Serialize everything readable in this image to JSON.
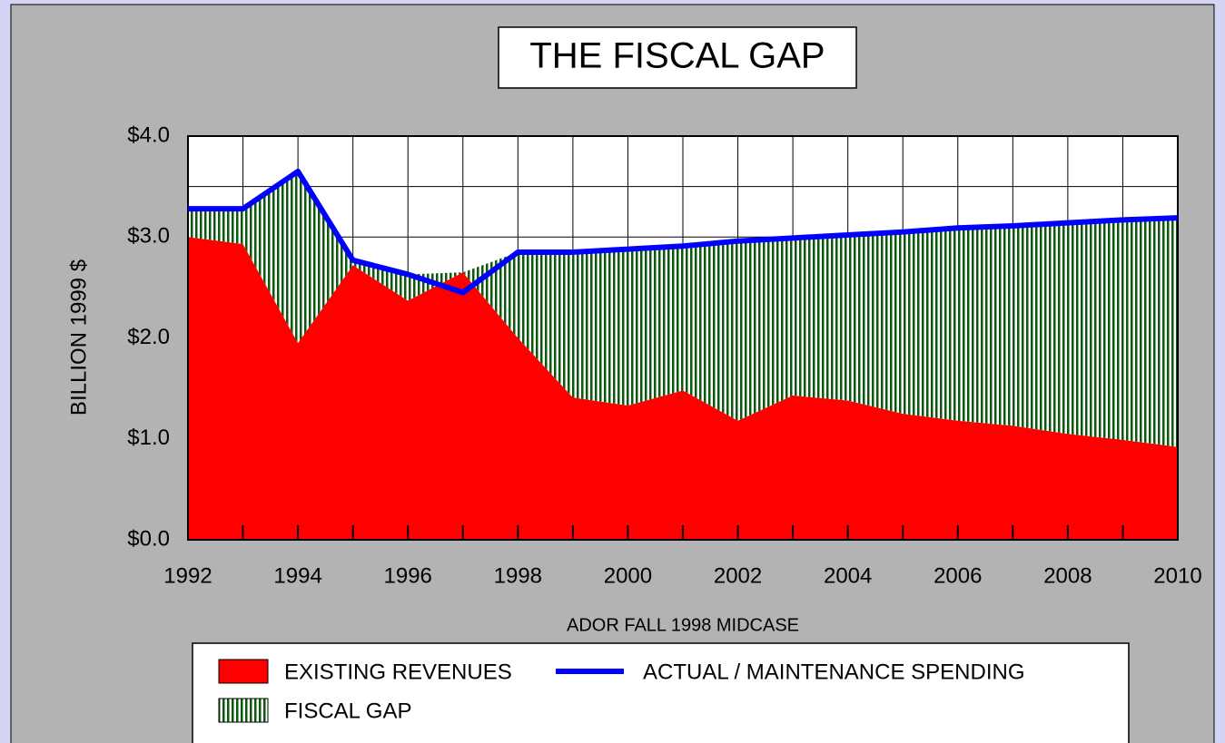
{
  "chart_data": {
    "type": "area",
    "title": "THE FISCAL GAP",
    "y_label": "BILLION 1999 $",
    "x_label": "ADOR FALL 1998 MIDCASE",
    "x": [
      1992,
      1993,
      1994,
      1995,
      1996,
      1997,
      1998,
      1999,
      2000,
      2001,
      2002,
      2003,
      2004,
      2005,
      2006,
      2007,
      2008,
      2009,
      2010
    ],
    "series": [
      {
        "name": "EXISTING REVENUES",
        "kind": "area",
        "color": "#ff0000",
        "values": [
          3.0,
          2.93,
          1.95,
          2.72,
          2.37,
          2.65,
          2.0,
          1.41,
          1.33,
          1.48,
          1.18,
          1.43,
          1.38,
          1.25,
          1.18,
          1.13,
          1.05,
          0.99,
          0.92
        ]
      },
      {
        "name": "FISCAL GAP",
        "kind": "hatched-area",
        "stacked": true,
        "color": "#0b5a0b",
        "values": [
          0.28,
          0.35,
          1.7,
          0.05,
          0.26,
          0,
          0.85,
          1.44,
          1.55,
          1.43,
          1.78,
          1.56,
          1.64,
          1.8,
          1.91,
          1.98,
          2.09,
          2.18,
          2.27
        ]
      },
      {
        "name": "ACTUAL / MAINTENANCE SPENDING",
        "kind": "line",
        "color": "#0000ff",
        "values": [
          3.28,
          3.28,
          3.65,
          2.77,
          2.63,
          2.45,
          2.85,
          2.85,
          2.88,
          2.91,
          2.96,
          2.99,
          3.02,
          3.05,
          3.09,
          3.11,
          3.14,
          3.17,
          3.19
        ]
      }
    ],
    "xlim": [
      1992,
      2010
    ],
    "xticks": [
      1992,
      1994,
      1996,
      1998,
      2000,
      2002,
      2004,
      2006,
      2008,
      2010
    ],
    "minor_xticks": [
      1993,
      1995,
      1997,
      1999,
      2001,
      2003,
      2005,
      2007,
      2009
    ],
    "ylim": [
      0,
      4
    ],
    "yticks": [
      {
        "value": 0,
        "label": "$0.0"
      },
      {
        "value": 1,
        "label": "$1.0"
      },
      {
        "value": 2,
        "label": "$2.0"
      },
      {
        "value": 3,
        "label": "$3.0"
      },
      {
        "value": 4,
        "label": "$4.0"
      }
    ],
    "minor_yticks": [
      0.5,
      1.5,
      2.5,
      3.5
    ],
    "grid": true,
    "legend": "bottom"
  }
}
